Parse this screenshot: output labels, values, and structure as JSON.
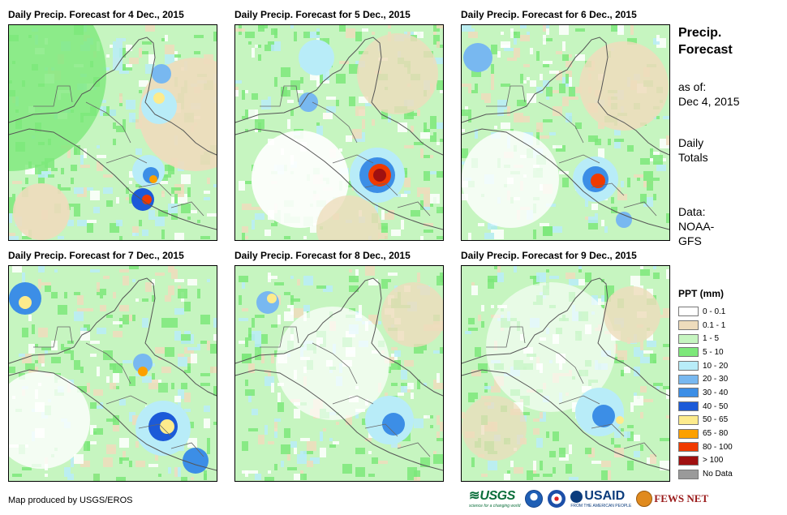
{
  "panels": [
    {
      "title": "Daily Precip. Forecast for 4 Dec., 2015"
    },
    {
      "title": "Daily Precip. Forecast for 5 Dec., 2015"
    },
    {
      "title": "Daily Precip. Forecast for 6 Dec., 2015"
    },
    {
      "title": "Daily Precip. Forecast for 7 Dec., 2015"
    },
    {
      "title": "Daily Precip. Forecast for 8 Dec., 2015"
    },
    {
      "title": "Daily Precip. Forecast for 9 Dec., 2015"
    }
  ],
  "sidebar": {
    "title_line1": "Precip.",
    "title_line2": "Forecast",
    "asof_line1": "as of:",
    "asof_line2": "Dec 4, 2015",
    "totals_line1": "Daily",
    "totals_line2": "Totals",
    "data_line1": "Data:",
    "data_line2": "NOAA-",
    "data_line3": "GFS"
  },
  "legend": {
    "title": "PPT (mm)",
    "items": [
      {
        "label": "0 - 0.1",
        "color": "#ffffff"
      },
      {
        "label": "0.1 - 1",
        "color": "#eedcbc"
      },
      {
        "label": "1 - 5",
        "color": "#c6f5c0"
      },
      {
        "label": "5 - 10",
        "color": "#7de87a"
      },
      {
        "label": "10 - 20",
        "color": "#b8ecf8"
      },
      {
        "label": "20 - 30",
        "color": "#78b8f0"
      },
      {
        "label": "30 - 40",
        "color": "#3c8ee6"
      },
      {
        "label": "40 - 50",
        "color": "#1c5ad8"
      },
      {
        "label": "50 - 65",
        "color": "#fdeb8c"
      },
      {
        "label": "65 - 80",
        "color": "#fca000"
      },
      {
        "label": "80 - 100",
        "color": "#f03a00"
      },
      {
        "label": "> 100",
        "color": "#a01010"
      },
      {
        "label": "No Data",
        "color": "#9a9a9a"
      }
    ]
  },
  "footer": {
    "credit": "Map produced by USGS/EROS",
    "logos": {
      "usgs": "USGS",
      "usgs_tagline": "science for a changing world",
      "usaid": "USAID",
      "usaid_tagline": "FROM THE AMERICAN PEOPLE",
      "fewsnet": "FEWS NET"
    }
  }
}
